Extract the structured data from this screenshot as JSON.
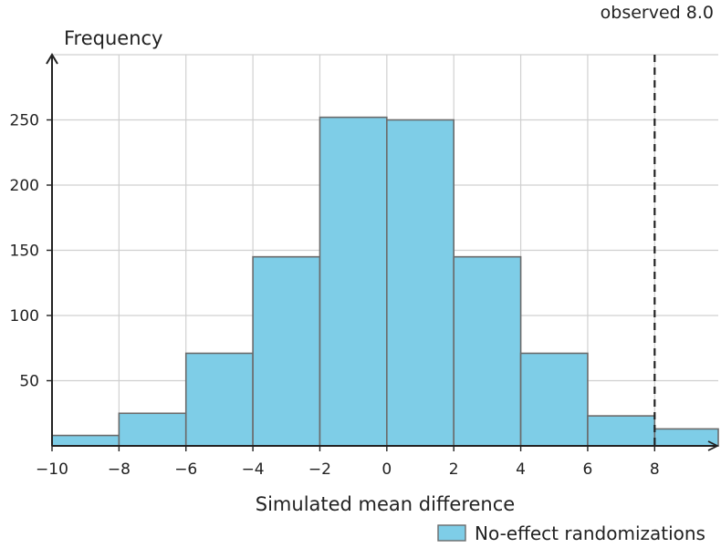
{
  "chart_data": {
    "type": "bar",
    "title": "",
    "xlabel": "Simulated mean difference",
    "ylabel": "Frequency",
    "xlim": [
      -10,
      9.9
    ],
    "ylim": [
      0,
      300
    ],
    "bins": [
      {
        "x0": -10,
        "x1": -8,
        "count": 8
      },
      {
        "x0": -8,
        "x1": -6,
        "count": 25
      },
      {
        "x0": -6,
        "x1": -4,
        "count": 71
      },
      {
        "x0": -4,
        "x1": -2,
        "count": 145
      },
      {
        "x0": -2,
        "x1": 0,
        "count": 252
      },
      {
        "x0": 0,
        "x1": 2,
        "count": 250
      },
      {
        "x0": 2,
        "x1": 4,
        "count": 145
      },
      {
        "x0": 4,
        "x1": 6,
        "count": 71
      },
      {
        "x0": 6,
        "x1": 8,
        "count": 23
      },
      {
        "x0": 8,
        "x1": 9.9,
        "count": 13
      }
    ],
    "x_ticks": [
      -10,
      -8,
      -6,
      -4,
      -2,
      0,
      2,
      4,
      6,
      8
    ],
    "x_tick_labels": [
      "−10",
      "−8",
      "−6",
      "−4",
      "−2",
      "0",
      "2",
      "4",
      "6",
      "8"
    ],
    "y_ticks": [
      50,
      100,
      150,
      200,
      250
    ],
    "y_tick_labels": [
      "50",
      "100",
      "150",
      "200",
      "250"
    ],
    "grid": true,
    "series": [
      {
        "name": "No-effect randomizations",
        "color": "#7ecde7",
        "edge_color": "#6b6b6b"
      }
    ],
    "reference_line": {
      "x": 8,
      "style": "dashed",
      "label": "observed 8.0"
    },
    "legend": {
      "placement": "bottom-right"
    }
  }
}
